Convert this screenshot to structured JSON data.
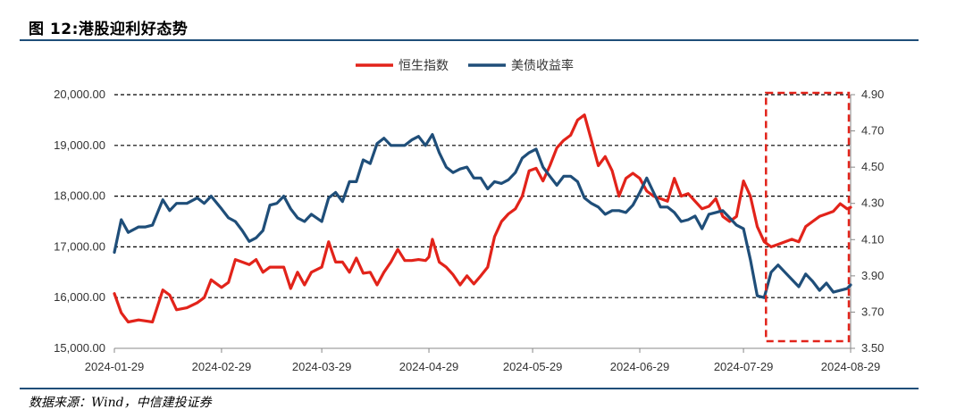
{
  "title": "图 12:港股迎利好态势",
  "source": "数据来源：Wind，中信建投证券",
  "chart_data": {
    "type": "line",
    "legend_position": "top-center",
    "grid": "dashed-horizontal",
    "x_tick_labels": [
      "2024-01-29",
      "2024-02-29",
      "2024-03-29",
      "2024-04-29",
      "2024-05-29",
      "2024-06-29",
      "2024-07-29",
      "2024-08-29"
    ],
    "x_range": [
      "2024-01-29",
      "2024-08-29"
    ],
    "y_left": {
      "range": [
        15000,
        20000
      ],
      "tick_values": [
        15000,
        16000,
        17000,
        18000,
        19000,
        20000
      ],
      "tick_labels": [
        "15,000.00",
        "16,000.00",
        "17,000.00",
        "18,000.00",
        "19,000.00",
        "20,000.00"
      ]
    },
    "y_right": {
      "range": [
        3.5,
        4.9
      ],
      "tick_values": [
        3.5,
        3.7,
        3.9,
        4.1,
        4.3,
        4.5,
        4.7,
        4.9
      ],
      "tick_labels": [
        "3.50",
        "3.70",
        "3.90",
        "4.10",
        "4.30",
        "4.50",
        "4.70",
        "4.90"
      ]
    },
    "highlight_box": {
      "x_start": "2024-08-04",
      "x_end": "2024-08-29",
      "color": "#e2231a"
    },
    "series": [
      {
        "name": "恒生指数",
        "axis": "left",
        "color": "#e2231a",
        "points": [
          [
            "2024-01-29",
            16080
          ],
          [
            "2024-01-31",
            15700
          ],
          [
            "2024-02-02",
            15520
          ],
          [
            "2024-02-05",
            15560
          ],
          [
            "2024-02-07",
            15540
          ],
          [
            "2024-02-09",
            15520
          ],
          [
            "2024-02-12",
            16150
          ],
          [
            "2024-02-14",
            16050
          ],
          [
            "2024-02-16",
            15760
          ],
          [
            "2024-02-19",
            15800
          ],
          [
            "2024-02-22",
            15900
          ],
          [
            "2024-02-24",
            16000
          ],
          [
            "2024-02-26",
            16350
          ],
          [
            "2024-02-29",
            16200
          ],
          [
            "2024-03-02",
            16300
          ],
          [
            "2024-03-04",
            16750
          ],
          [
            "2024-03-06",
            16700
          ],
          [
            "2024-03-08",
            16650
          ],
          [
            "2024-03-10",
            16750
          ],
          [
            "2024-03-12",
            16500
          ],
          [
            "2024-03-14",
            16600
          ],
          [
            "2024-03-16",
            16600
          ],
          [
            "2024-03-18",
            16600
          ],
          [
            "2024-03-20",
            16180
          ],
          [
            "2024-03-22",
            16500
          ],
          [
            "2024-03-24",
            16250
          ],
          [
            "2024-03-26",
            16500
          ],
          [
            "2024-03-29",
            16600
          ],
          [
            "2024-03-31",
            17100
          ],
          [
            "2024-04-02",
            16700
          ],
          [
            "2024-04-04",
            16700
          ],
          [
            "2024-04-06",
            16500
          ],
          [
            "2024-04-08",
            16780
          ],
          [
            "2024-04-10",
            16480
          ],
          [
            "2024-04-12",
            16500
          ],
          [
            "2024-04-14",
            16250
          ],
          [
            "2024-04-16",
            16500
          ],
          [
            "2024-04-18",
            16700
          ],
          [
            "2024-04-20",
            16950
          ],
          [
            "2024-04-22",
            16730
          ],
          [
            "2024-04-24",
            16730
          ],
          [
            "2024-04-26",
            16750
          ],
          [
            "2024-04-28",
            16730
          ],
          [
            "2024-04-29",
            16800
          ],
          [
            "2024-04-30",
            17150
          ],
          [
            "2024-05-02",
            16700
          ],
          [
            "2024-05-04",
            16600
          ],
          [
            "2024-05-06",
            16450
          ],
          [
            "2024-05-08",
            16250
          ],
          [
            "2024-05-10",
            16430
          ],
          [
            "2024-05-12",
            16270
          ],
          [
            "2024-05-14",
            16430
          ],
          [
            "2024-05-16",
            16600
          ],
          [
            "2024-05-18",
            17200
          ],
          [
            "2024-05-20",
            17500
          ],
          [
            "2024-05-22",
            17650
          ],
          [
            "2024-05-24",
            17750
          ],
          [
            "2024-05-26",
            18000
          ],
          [
            "2024-05-28",
            18500
          ],
          [
            "2024-05-30",
            18550
          ],
          [
            "2024-06-01",
            18300
          ],
          [
            "2024-06-03",
            18600
          ],
          [
            "2024-06-05",
            18950
          ],
          [
            "2024-06-07",
            19100
          ],
          [
            "2024-06-09",
            19200
          ],
          [
            "2024-06-11",
            19500
          ],
          [
            "2024-06-13",
            19600
          ],
          [
            "2024-06-15",
            19100
          ],
          [
            "2024-06-17",
            18600
          ],
          [
            "2024-06-19",
            18780
          ],
          [
            "2024-06-21",
            18500
          ],
          [
            "2024-06-23",
            18000
          ],
          [
            "2024-06-25",
            18350
          ],
          [
            "2024-06-27",
            18450
          ],
          [
            "2024-06-29",
            18350
          ],
          [
            "2024-07-01",
            18100
          ],
          [
            "2024-07-03",
            18000
          ],
          [
            "2024-07-05",
            17950
          ],
          [
            "2024-07-07",
            17900
          ],
          [
            "2024-07-09",
            18350
          ],
          [
            "2024-07-11",
            18000
          ],
          [
            "2024-07-13",
            18050
          ],
          [
            "2024-07-15",
            17900
          ],
          [
            "2024-07-17",
            17750
          ],
          [
            "2024-07-19",
            17800
          ],
          [
            "2024-07-21",
            17950
          ],
          [
            "2024-07-23",
            17600
          ],
          [
            "2024-07-25",
            17500
          ],
          [
            "2024-07-27",
            17600
          ],
          [
            "2024-07-29",
            18300
          ],
          [
            "2024-07-31",
            18000
          ],
          [
            "2024-08-02",
            17400
          ],
          [
            "2024-08-04",
            17100
          ],
          [
            "2024-08-06",
            17000
          ],
          [
            "2024-08-08",
            17050
          ],
          [
            "2024-08-10",
            17100
          ],
          [
            "2024-08-12",
            17150
          ],
          [
            "2024-08-14",
            17100
          ],
          [
            "2024-08-16",
            17400
          ],
          [
            "2024-08-18",
            17500
          ],
          [
            "2024-08-20",
            17600
          ],
          [
            "2024-08-22",
            17650
          ],
          [
            "2024-08-24",
            17700
          ],
          [
            "2024-08-26",
            17850
          ],
          [
            "2024-08-28",
            17750
          ],
          [
            "2024-08-29",
            17780
          ]
        ]
      },
      {
        "name": "美债收益率",
        "axis": "right",
        "color": "#1f4e79",
        "points": [
          [
            "2024-01-29",
            4.03
          ],
          [
            "2024-01-31",
            4.21
          ],
          [
            "2024-02-02",
            4.14
          ],
          [
            "2024-02-05",
            4.17
          ],
          [
            "2024-02-07",
            4.17
          ],
          [
            "2024-02-09",
            4.18
          ],
          [
            "2024-02-12",
            4.32
          ],
          [
            "2024-02-14",
            4.26
          ],
          [
            "2024-02-16",
            4.3
          ],
          [
            "2024-02-19",
            4.3
          ],
          [
            "2024-02-22",
            4.33
          ],
          [
            "2024-02-24",
            4.3
          ],
          [
            "2024-02-26",
            4.34
          ],
          [
            "2024-02-29",
            4.27
          ],
          [
            "2024-03-02",
            4.22
          ],
          [
            "2024-03-04",
            4.2
          ],
          [
            "2024-03-06",
            4.15
          ],
          [
            "2024-03-08",
            4.09
          ],
          [
            "2024-03-10",
            4.11
          ],
          [
            "2024-03-12",
            4.15
          ],
          [
            "2024-03-14",
            4.29
          ],
          [
            "2024-03-16",
            4.3
          ],
          [
            "2024-03-18",
            4.34
          ],
          [
            "2024-03-20",
            4.27
          ],
          [
            "2024-03-22",
            4.22
          ],
          [
            "2024-03-24",
            4.2
          ],
          [
            "2024-03-26",
            4.24
          ],
          [
            "2024-03-29",
            4.2
          ],
          [
            "2024-03-31",
            4.33
          ],
          [
            "2024-04-02",
            4.36
          ],
          [
            "2024-04-04",
            4.31
          ],
          [
            "2024-04-06",
            4.42
          ],
          [
            "2024-04-08",
            4.42
          ],
          [
            "2024-04-10",
            4.54
          ],
          [
            "2024-04-12",
            4.52
          ],
          [
            "2024-04-14",
            4.63
          ],
          [
            "2024-04-16",
            4.66
          ],
          [
            "2024-04-18",
            4.62
          ],
          [
            "2024-04-20",
            4.62
          ],
          [
            "2024-04-22",
            4.62
          ],
          [
            "2024-04-24",
            4.65
          ],
          [
            "2024-04-26",
            4.67
          ],
          [
            "2024-04-28",
            4.62
          ],
          [
            "2024-04-30",
            4.68
          ],
          [
            "2024-05-02",
            4.58
          ],
          [
            "2024-05-04",
            4.5
          ],
          [
            "2024-05-06",
            4.47
          ],
          [
            "2024-05-08",
            4.49
          ],
          [
            "2024-05-10",
            4.5
          ],
          [
            "2024-05-12",
            4.44
          ],
          [
            "2024-05-14",
            4.44
          ],
          [
            "2024-05-16",
            4.38
          ],
          [
            "2024-05-18",
            4.42
          ],
          [
            "2024-05-20",
            4.41
          ],
          [
            "2024-05-22",
            4.43
          ],
          [
            "2024-05-24",
            4.47
          ],
          [
            "2024-05-26",
            4.55
          ],
          [
            "2024-05-28",
            4.58
          ],
          [
            "2024-05-30",
            4.6
          ],
          [
            "2024-06-01",
            4.5
          ],
          [
            "2024-06-03",
            4.45
          ],
          [
            "2024-06-05",
            4.4
          ],
          [
            "2024-06-07",
            4.45
          ],
          [
            "2024-06-09",
            4.45
          ],
          [
            "2024-06-11",
            4.42
          ],
          [
            "2024-06-13",
            4.33
          ],
          [
            "2024-06-15",
            4.3
          ],
          [
            "2024-06-17",
            4.28
          ],
          [
            "2024-06-19",
            4.24
          ],
          [
            "2024-06-21",
            4.26
          ],
          [
            "2024-06-23",
            4.26
          ],
          [
            "2024-06-25",
            4.25
          ],
          [
            "2024-06-27",
            4.29
          ],
          [
            "2024-06-29",
            4.36
          ],
          [
            "2024-07-01",
            4.44
          ],
          [
            "2024-07-03",
            4.36
          ],
          [
            "2024-07-05",
            4.28
          ],
          [
            "2024-07-07",
            4.28
          ],
          [
            "2024-07-09",
            4.25
          ],
          [
            "2024-07-11",
            4.2
          ],
          [
            "2024-07-13",
            4.21
          ],
          [
            "2024-07-15",
            4.23
          ],
          [
            "2024-07-17",
            4.16
          ],
          [
            "2024-07-19",
            4.24
          ],
          [
            "2024-07-21",
            4.25
          ],
          [
            "2024-07-23",
            4.26
          ],
          [
            "2024-07-25",
            4.22
          ],
          [
            "2024-07-27",
            4.18
          ],
          [
            "2024-07-29",
            4.16
          ],
          [
            "2024-07-31",
            3.99
          ],
          [
            "2024-08-02",
            3.79
          ],
          [
            "2024-08-04",
            3.78
          ],
          [
            "2024-08-06",
            3.92
          ],
          [
            "2024-08-08",
            3.96
          ],
          [
            "2024-08-10",
            3.92
          ],
          [
            "2024-08-12",
            3.88
          ],
          [
            "2024-08-14",
            3.84
          ],
          [
            "2024-08-16",
            3.91
          ],
          [
            "2024-08-18",
            3.87
          ],
          [
            "2024-08-20",
            3.82
          ],
          [
            "2024-08-22",
            3.86
          ],
          [
            "2024-08-24",
            3.81
          ],
          [
            "2024-08-26",
            3.82
          ],
          [
            "2024-08-28",
            3.83
          ],
          [
            "2024-08-29",
            3.85
          ]
        ]
      }
    ]
  }
}
